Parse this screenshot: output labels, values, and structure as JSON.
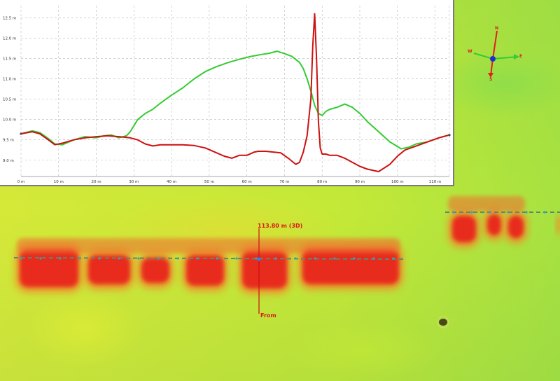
{
  "measurement": {
    "distance_label": "113.80 m (3D)",
    "from_label": "From"
  },
  "compass": {
    "north_label": "N",
    "south_label": "S",
    "east_label": "E",
    "west_label": "W"
  },
  "chart_data": {
    "type": "line",
    "title": "",
    "xlabel": "",
    "ylabel": "",
    "x_tick_labels": [
      "0 m",
      "10 m",
      "20 m",
      "30 m",
      "40 m",
      "50 m",
      "60 m",
      "70 m",
      "80 m",
      "90 m",
      "100 m",
      "110 m"
    ],
    "y_tick_labels": [
      "9.0 m",
      "9.5 m",
      "10.0 m",
      "10.5 m",
      "11.0 m",
      "11.5 m",
      "12.0 m",
      "12.5 m"
    ],
    "xlim": [
      0,
      113.8
    ],
    "ylim": [
      8.6,
      12.8
    ],
    "grid": true,
    "series": [
      {
        "color": "#33cc33",
        "x": [
          0,
          3,
          5,
          7,
          9,
          11,
          14,
          17,
          20,
          22,
          24,
          26,
          28,
          29,
          31,
          33,
          35,
          37,
          40,
          43,
          46,
          49,
          52,
          55,
          58,
          61,
          64,
          66,
          68,
          70,
          72,
          74,
          75,
          76,
          77,
          78,
          79,
          80,
          81,
          82,
          84,
          86,
          88,
          90,
          92,
          95,
          98,
          101,
          103,
          105,
          108,
          111,
          113.8
        ],
        "y": [
          9.65,
          9.72,
          9.68,
          9.55,
          9.4,
          9.38,
          9.5,
          9.58,
          9.55,
          9.6,
          9.62,
          9.55,
          9.6,
          9.7,
          10.0,
          10.15,
          10.25,
          10.4,
          10.6,
          10.78,
          11.0,
          11.18,
          11.3,
          11.4,
          11.48,
          11.55,
          11.6,
          11.63,
          11.68,
          11.62,
          11.55,
          11.4,
          11.25,
          11.0,
          10.7,
          10.35,
          10.15,
          10.1,
          10.2,
          10.25,
          10.3,
          10.38,
          10.3,
          10.15,
          9.95,
          9.7,
          9.45,
          9.28,
          9.32,
          9.4,
          9.45,
          9.55,
          9.62
        ]
      },
      {
        "color": "#cc1111",
        "x": [
          0,
          3,
          5,
          7,
          9,
          11,
          14,
          17,
          20,
          23,
          26,
          29,
          31,
          33,
          35,
          37,
          40,
          43,
          46,
          49,
          52,
          54,
          56,
          58,
          60,
          62,
          63,
          65,
          67,
          69,
          71,
          73,
          74,
          75,
          76,
          77,
          77.5,
          78,
          78.5,
          79,
          79.5,
          80,
          81,
          82,
          84,
          86,
          88,
          90,
          92,
          95,
          98,
          100,
          102,
          105,
          108,
          111,
          113.8
        ],
        "y": [
          9.65,
          9.7,
          9.65,
          9.52,
          9.38,
          9.42,
          9.5,
          9.55,
          9.58,
          9.6,
          9.58,
          9.55,
          9.5,
          9.4,
          9.35,
          9.38,
          9.38,
          9.38,
          9.36,
          9.3,
          9.18,
          9.1,
          9.05,
          9.12,
          9.12,
          9.2,
          9.22,
          9.22,
          9.2,
          9.18,
          9.05,
          8.9,
          8.95,
          9.2,
          9.6,
          10.5,
          11.8,
          12.6,
          11.5,
          9.95,
          9.3,
          9.15,
          9.15,
          9.12,
          9.12,
          9.05,
          8.95,
          8.85,
          8.78,
          8.72,
          8.9,
          9.1,
          9.25,
          9.35,
          9.45,
          9.55,
          9.62
        ]
      }
    ]
  }
}
